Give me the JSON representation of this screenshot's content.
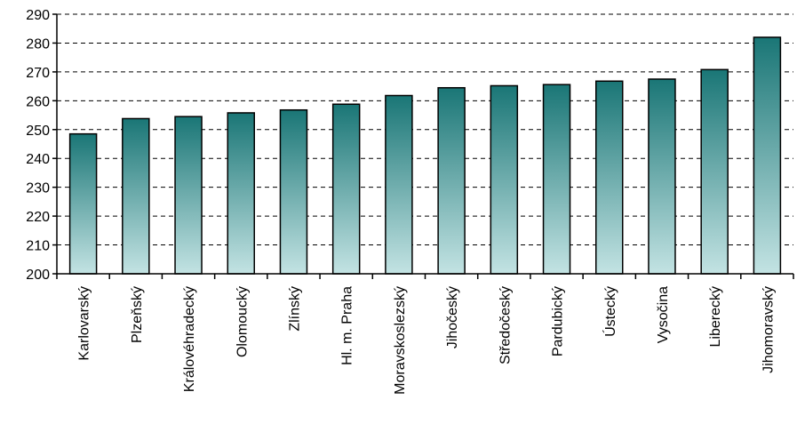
{
  "chart_data": {
    "type": "bar",
    "title": "",
    "xlabel": "",
    "ylabel": "",
    "ylim": [
      200,
      290
    ],
    "yticks": [
      200,
      210,
      220,
      230,
      240,
      250,
      260,
      270,
      280,
      290
    ],
    "grid": "horizontal dashed",
    "categories": [
      "Karlovarský",
      "Plzeňský",
      "Královéhradecký",
      "Olomoucký",
      "Zlínský",
      "Hl. m. Praha",
      "Moravskoslezský",
      "Jihočeský",
      "Středočeský",
      "Pardubický",
      "Ústecký",
      "Vysočina",
      "Liberecký",
      "Jihomoravský"
    ],
    "values": [
      248.5,
      253.8,
      254.5,
      255.8,
      256.8,
      258.8,
      261.8,
      264.5,
      265.2,
      265.6,
      266.8,
      267.5,
      270.8,
      282.0
    ],
    "bar_gradient": {
      "top": "#1a7676",
      "bottom": "#c3e3e3"
    },
    "bar_outline": "#000000"
  }
}
